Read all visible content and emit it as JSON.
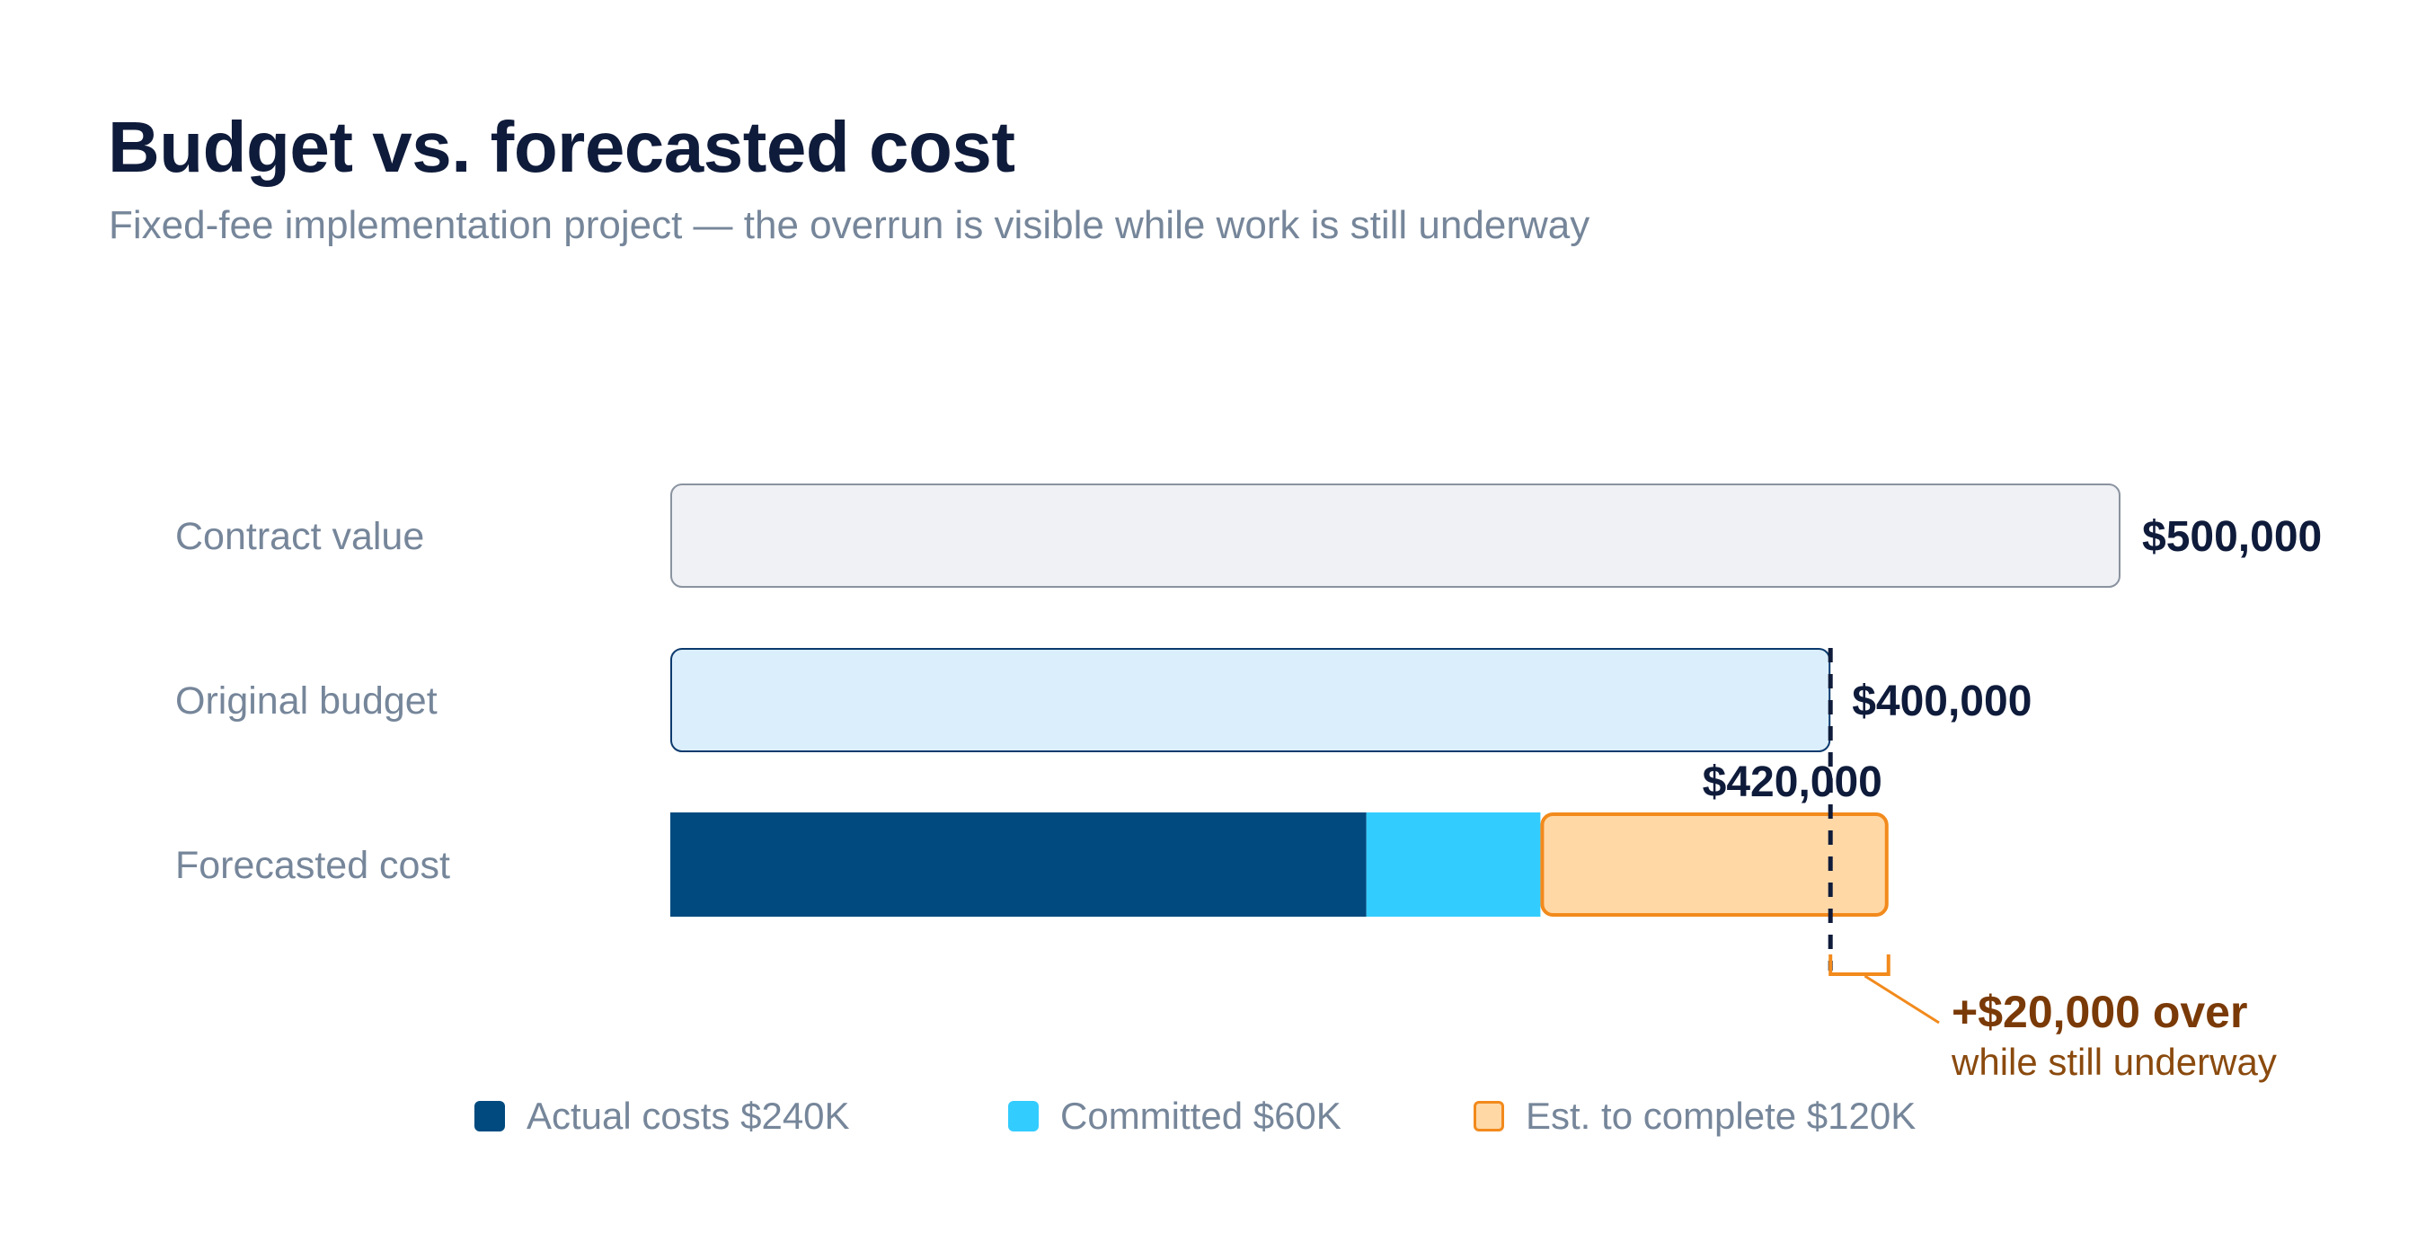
{
  "title": "Budget vs. forecasted cost",
  "subtitle": "Fixed-fee implementation project — the overrun is visible while work is still underway",
  "chart_data": {
    "type": "bar",
    "orientation": "horizontal",
    "stacked": true,
    "title": "Budget vs. forecasted cost",
    "subtitle": "Fixed-fee implementation project — the overrun is visible while work is still underway",
    "xlim": [
      0,
      500000
    ],
    "grid": false,
    "rows": [
      {
        "label": "Contract value",
        "value": 500000,
        "value_label": "$500,000",
        "color": "#eff1f5",
        "stroke": "#8a939f"
      },
      {
        "label": "Original budget",
        "value": 400000,
        "value_label": "$400,000",
        "color": "#dbeefb",
        "stroke": "#0c3a6e"
      },
      {
        "label": "Forecasted cost",
        "value": 420000,
        "value_label": "$420,000",
        "segments": [
          {
            "name": "Actual costs",
            "value": 240000,
            "color": "#004a7f"
          },
          {
            "name": "Committed",
            "value": 60000,
            "color": "#33ccff"
          },
          {
            "name": "Est. to complete",
            "value": 120000,
            "color": "#ffd8a6",
            "stroke": "#f28a1c"
          }
        ]
      }
    ],
    "reference_line": {
      "value": 400000,
      "style": "dashed",
      "color": "#0f1b3a"
    },
    "annotation": {
      "text": "+$20,000 over",
      "subtext": "while still underway",
      "from": 400000,
      "to": 420000,
      "color": "#f28a1c"
    },
    "legend": {
      "placement": "bottom",
      "items": [
        {
          "label": "Actual costs $240K",
          "color": "#004a7f"
        },
        {
          "label": "Committed $60K",
          "color": "#33ccff"
        },
        {
          "label": "Est. to complete $120K",
          "color": "#ffd8a6",
          "stroke": "#f28a1c"
        }
      ]
    }
  }
}
